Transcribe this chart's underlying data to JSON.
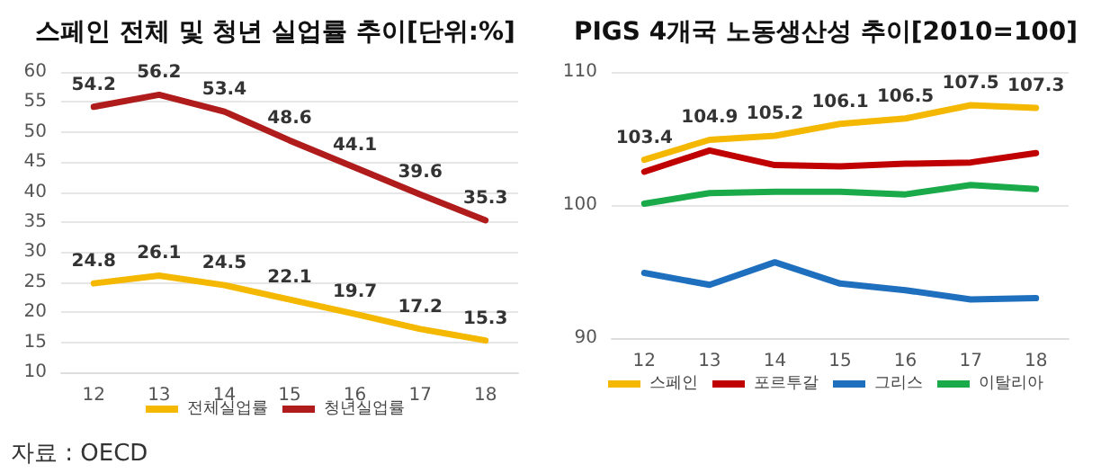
{
  "chart_data": [
    {
      "type": "line",
      "title": "스페인 전체 및 청년 실업률 추이[단위:%]",
      "categories": [
        "12",
        "13",
        "14",
        "15",
        "16",
        "17",
        "18"
      ],
      "series": [
        {
          "name": "전체실업률",
          "color": "#f5b800",
          "values": [
            24.8,
            26.1,
            24.5,
            22.1,
            19.7,
            17.2,
            15.3
          ]
        },
        {
          "name": "청년실업률",
          "color": "#b01c1c",
          "values": [
            54.2,
            56.2,
            53.4,
            48.6,
            44.1,
            39.6,
            35.3
          ]
        }
      ],
      "ylim": [
        10,
        60
      ],
      "yticks": [
        10,
        15,
        20,
        25,
        30,
        35,
        40,
        45,
        50,
        55,
        60
      ],
      "grid": "y",
      "legend": "bottom",
      "data_labels": true,
      "marker": "none",
      "line_style": "solid",
      "annotations": [
        "자료 : OECD"
      ]
    },
    {
      "type": "line",
      "title": "PIGS 4개국 노동생산성 추이[2010=100]",
      "categories": [
        "12",
        "13",
        "14",
        "15",
        "16",
        "17",
        "18"
      ],
      "series": [
        {
          "name": "스페인",
          "color": "#f5b800",
          "values": [
            103.4,
            104.9,
            105.2,
            106.1,
            106.5,
            107.5,
            107.3
          ],
          "value_labels": [
            "103.4",
            "104.9",
            "105.2",
            "106.1",
            "106.5",
            "107.5",
            "107.3"
          ]
        },
        {
          "name": "포르투갈",
          "color": "#c00000",
          "values": [
            102.5,
            104.1,
            103.0,
            102.9,
            103.1,
            103.2,
            103.9
          ]
        },
        {
          "name": "그리스",
          "color": "#1f6fbf",
          "values": [
            94.9,
            94.0,
            95.7,
            94.1,
            93.6,
            92.9,
            93.0
          ]
        },
        {
          "name": "이탈리아",
          "color": "#1aaa4a",
          "values": [
            100.1,
            100.9,
            101.0,
            101.0,
            100.8,
            101.5,
            101.2
          ]
        }
      ],
      "ylim": [
        90,
        110
      ],
      "yticks": [
        90,
        100,
        110
      ],
      "grid": "y",
      "legend": "bottom",
      "marker": "none",
      "line_style": "solid"
    }
  ]
}
